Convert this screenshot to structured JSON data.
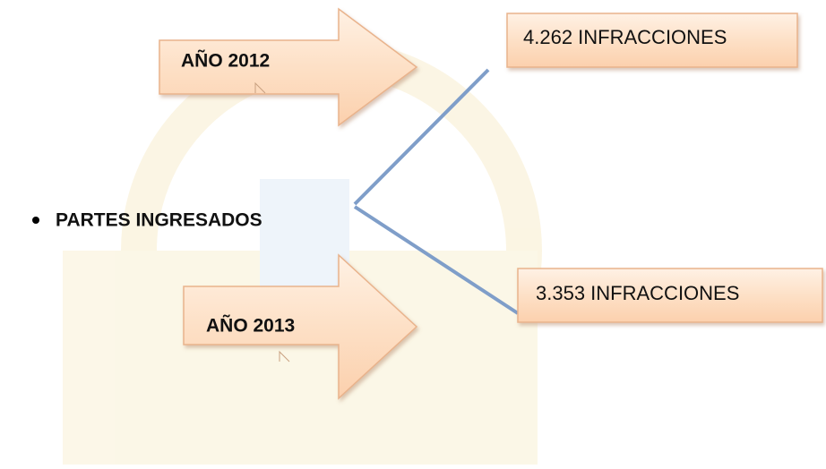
{
  "bullet": "PARTES INGRESADOS",
  "items": [
    {
      "year": "AÑO 2012",
      "result": "4.262 INFRACCIONES"
    },
    {
      "year": "AÑO 2013",
      "result": "3.353 INFRACCIONES"
    }
  ]
}
